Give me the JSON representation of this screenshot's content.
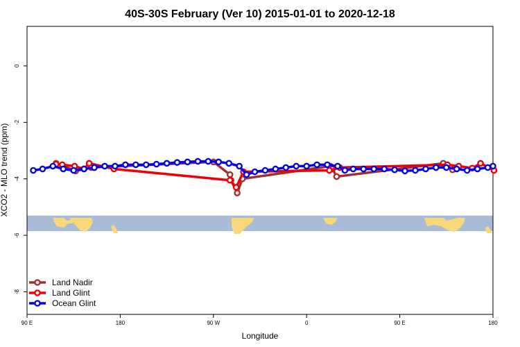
{
  "chart_data": {
    "type": "line",
    "title": "40S-30S February (Ver 10)   2015-01-01 to 2020-12-18",
    "xlabel": "Longitude",
    "ylabel": "XCO2 - MLO trend (ppm)",
    "xlim": [
      90,
      540
    ],
    "ylim": [
      -8.8,
      1.4
    ],
    "x_ticks": [
      {
        "value": 90,
        "label": "90 E"
      },
      {
        "value": 180,
        "label": "180"
      },
      {
        "value": 270,
        "label": "90 W"
      },
      {
        "value": 360,
        "label": "0"
      },
      {
        "value": 450,
        "label": "90 E"
      },
      {
        "value": 540,
        "label": "180"
      }
    ],
    "y_ticks": [
      {
        "value": 0,
        "label": "0"
      },
      {
        "value": -2,
        "label": "-2"
      },
      {
        "value": -4,
        "label": "-4"
      },
      {
        "value": -6,
        "label": "-6"
      },
      {
        "value": -8,
        "label": "-8"
      }
    ],
    "grid": false,
    "legend_position": "bottom-left",
    "map_strip": {
      "ymin": -5.85,
      "ymax": -5.3,
      "ocean_color": "#a8bcd8",
      "land_color": "#f8d878"
    },
    "series": [
      {
        "name": "Land Nadir",
        "color": "#a03030",
        "points": [
          [
            118,
            -3.45
          ],
          [
            137,
            -3.72
          ],
          [
            152,
            -3.6
          ],
          [
            270,
            -3.4
          ],
          [
            286,
            -3.85
          ],
          [
            287,
            -4.05
          ],
          [
            293,
            -4.5
          ],
          [
            298,
            -4.0
          ],
          [
            383,
            -3.55
          ],
          [
            385,
            -3.65
          ],
          [
            389,
            -3.92
          ],
          [
            492,
            -3.45
          ],
          [
            501,
            -3.68
          ]
        ]
      },
      {
        "name": "Land Glint",
        "color": "#ee0000",
        "points": [
          [
            118,
            -3.48
          ],
          [
            124,
            -3.5
          ],
          [
            136,
            -3.55
          ],
          [
            145,
            -3.65
          ],
          [
            150,
            -3.45
          ],
          [
            174,
            -3.65
          ],
          [
            286,
            -4.05
          ],
          [
            292,
            -4.3
          ],
          [
            299,
            -3.75
          ],
          [
            382,
            -3.7
          ],
          [
            392,
            -3.6
          ],
          [
            496,
            -3.5
          ],
          [
            507,
            -3.55
          ],
          [
            520,
            -3.62
          ],
          [
            528,
            -3.45
          ],
          [
            541,
            -3.7
          ]
        ]
      },
      {
        "name": "Ocean Glint",
        "color": "#0000ee",
        "points": [
          [
            96,
            -3.7
          ],
          [
            105,
            -3.65
          ],
          [
            115,
            -3.55
          ],
          [
            125,
            -3.65
          ],
          [
            135,
            -3.7
          ],
          [
            145,
            -3.65
          ],
          [
            155,
            -3.6
          ],
          [
            165,
            -3.55
          ],
          [
            175,
            -3.55
          ],
          [
            185,
            -3.5
          ],
          [
            195,
            -3.5
          ],
          [
            205,
            -3.5
          ],
          [
            215,
            -3.48
          ],
          [
            225,
            -3.45
          ],
          [
            235,
            -3.42
          ],
          [
            245,
            -3.4
          ],
          [
            255,
            -3.38
          ],
          [
            265,
            -3.38
          ],
          [
            275,
            -3.4
          ],
          [
            285,
            -3.45
          ],
          [
            295,
            -3.55
          ],
          [
            302,
            -3.85
          ],
          [
            310,
            -3.75
          ],
          [
            320,
            -3.7
          ],
          [
            330,
            -3.65
          ],
          [
            340,
            -3.6
          ],
          [
            350,
            -3.55
          ],
          [
            360,
            -3.55
          ],
          [
            370,
            -3.5
          ],
          [
            380,
            -3.5
          ],
          [
            390,
            -3.55
          ],
          [
            397,
            -3.7
          ],
          [
            405,
            -3.65
          ],
          [
            415,
            -3.65
          ],
          [
            425,
            -3.65
          ],
          [
            435,
            -3.65
          ],
          [
            445,
            -3.68
          ],
          [
            455,
            -3.72
          ],
          [
            465,
            -3.7
          ],
          [
            475,
            -3.65
          ],
          [
            485,
            -3.6
          ],
          [
            495,
            -3.6
          ],
          [
            505,
            -3.65
          ],
          [
            515,
            -3.7
          ],
          [
            525,
            -3.65
          ],
          [
            535,
            -3.6
          ],
          [
            540,
            -3.55
          ]
        ]
      }
    ]
  }
}
